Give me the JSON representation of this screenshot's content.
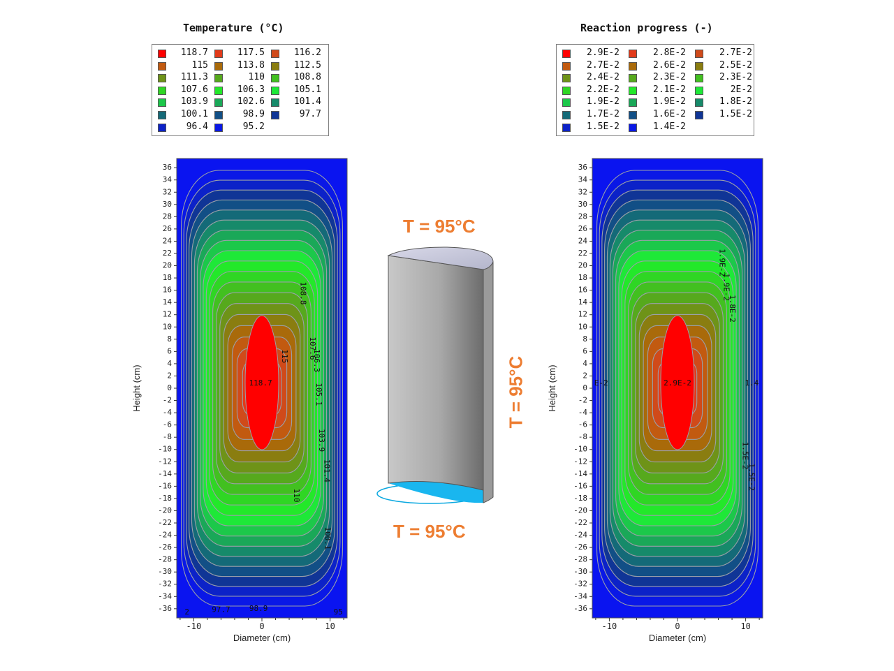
{
  "chart_data": [
    {
      "type": "heatmap",
      "title": "Temperature (°C)",
      "xlabel": "Diameter (cm)",
      "ylabel": "Height (cm)",
      "xlim": [
        -12.5,
        12.5
      ],
      "ylim": [
        -37.5,
        37.5
      ],
      "x_ticks": [
        -10,
        0,
        10
      ],
      "y_ticks": [
        36,
        34,
        32,
        30,
        28,
        26,
        24,
        22,
        20,
        18,
        16,
        14,
        12,
        10,
        8,
        6,
        4,
        2,
        0,
        -2,
        -4,
        -6,
        -8,
        -10,
        -12,
        -14,
        -16,
        -18,
        -20,
        -22,
        -24,
        -26,
        -28,
        -30,
        -32,
        -34,
        -36
      ],
      "legend": {
        "placement": "top",
        "levels": [
          "118.7",
          "117.5",
          "116.2",
          "115",
          "113.8",
          "112.5",
          "111.3",
          "110",
          "108.8",
          "107.6",
          "106.3",
          "105.1",
          "103.9",
          "102.6",
          "101.4",
          "100.1",
          "98.9",
          "97.7",
          "96.4",
          "95.2"
        ],
        "colors": [
          "#ff0000",
          "#e23a1a",
          "#d04a1a",
          "#c25a10",
          "#a96a0a",
          "#8a7d10",
          "#6e9318",
          "#56a91d",
          "#42c020",
          "#2fd624",
          "#23e82a",
          "#1ee838",
          "#1cc84a",
          "#1aa858",
          "#168a6a",
          "#146a78",
          "#124f86",
          "#103596",
          "#0c22c8",
          "#0a18e6"
        ],
        "max_value": 118.7,
        "min_value": 95
      },
      "annotations": [
        {
          "text": "118.7",
          "x": -0.2,
          "y": 0.8
        },
        {
          "text": "115",
          "x": 3.3,
          "y": 5.2,
          "rotate": 90
        },
        {
          "text": "108.8",
          "x": 6.0,
          "y": 15.5,
          "rotate": 90
        },
        {
          "text": "107.6",
          "x": 7.4,
          "y": 6.5,
          "rotate": 90
        },
        {
          "text": "106.3",
          "x": 8.0,
          "y": 4.5,
          "rotate": 90
        },
        {
          "text": "105.1",
          "x": 8.3,
          "y": -1.0,
          "rotate": 90
        },
        {
          "text": "103.9",
          "x": 8.7,
          "y": -8.5,
          "rotate": 90
        },
        {
          "text": "101.4",
          "x": 9.5,
          "y": -13.5,
          "rotate": 90
        },
        {
          "text": "110",
          "x": 5.0,
          "y": -17.5,
          "rotate": 90
        },
        {
          "text": "100.1",
          "x": 9.6,
          "y": -24.5,
          "rotate": 90
        },
        {
          "text": "97.7",
          "x": -6.0,
          "y": -36.2
        },
        {
          "text": "98.9",
          "x": -0.5,
          "y": -36.0
        },
        {
          "text": "95",
          "x": 11.2,
          "y": -36.6
        },
        {
          "text": "2",
          "x": -11.0,
          "y": -36.6
        }
      ]
    },
    {
      "type": "heatmap",
      "title": "Reaction progress (-)",
      "xlabel": "Diameter (cm)",
      "ylabel": "Height (cm)",
      "xlim": [
        -12.5,
        12.5
      ],
      "ylim": [
        -37.5,
        37.5
      ],
      "x_ticks": [
        -10,
        0,
        10
      ],
      "y_ticks": [
        36,
        34,
        32,
        30,
        28,
        26,
        24,
        22,
        20,
        18,
        16,
        14,
        12,
        10,
        8,
        6,
        4,
        2,
        0,
        -2,
        -4,
        -6,
        -8,
        -10,
        -12,
        -14,
        -16,
        -18,
        -20,
        -22,
        -24,
        -26,
        -28,
        -30,
        -32,
        -34,
        -36
      ],
      "legend": {
        "placement": "top",
        "levels": [
          "2.9E-2",
          "2.8E-2",
          "2.7E-2",
          "2.7E-2",
          "2.6E-2",
          "2.5E-2",
          "2.4E-2",
          "2.3E-2",
          "2.3E-2",
          "2.2E-2",
          "2.1E-2",
          "2E-2",
          "1.9E-2",
          "1.9E-2",
          "1.8E-2",
          "1.7E-2",
          "1.6E-2",
          "1.5E-2",
          "1.5E-2",
          "1.4E-2"
        ],
        "colors": [
          "#ff0000",
          "#e23a1a",
          "#d04a1a",
          "#c25a10",
          "#a96a0a",
          "#8a7d10",
          "#6e9318",
          "#56a91d",
          "#42c020",
          "#2fd624",
          "#23e82a",
          "#1ee838",
          "#1cc84a",
          "#1aa858",
          "#168a6a",
          "#146a78",
          "#124f86",
          "#103596",
          "#0c22c8",
          "#0a18e6"
        ],
        "max_value": 0.029,
        "min_value": 0.014
      },
      "annotations": [
        {
          "text": "2.9E-2",
          "x": 0.0,
          "y": 0.8
        },
        {
          "text": "1.9E-2",
          "x": 6.5,
          "y": 20.5,
          "rotate": 90
        },
        {
          "text": "1.9E-2",
          "x": 7.1,
          "y": 16.5,
          "rotate": 90
        },
        {
          "text": "1.8E-2",
          "x": 8.0,
          "y": 13.0,
          "rotate": 90
        },
        {
          "text": "1.4",
          "x": 10.9,
          "y": 0.8
        },
        {
          "text": "E-2",
          "x": -11.2,
          "y": 0.8
        },
        {
          "text": "1.5E-2",
          "x": 9.9,
          "y": -11.0,
          "rotate": 90
        },
        {
          "text": "1.5E-2",
          "x": 10.8,
          "y": -14.5,
          "rotate": 90
        }
      ]
    }
  ],
  "diagram": {
    "label_top": "T = 95°C",
    "label_side": "T = 95°C",
    "label_bottom": "T = 95°C"
  }
}
